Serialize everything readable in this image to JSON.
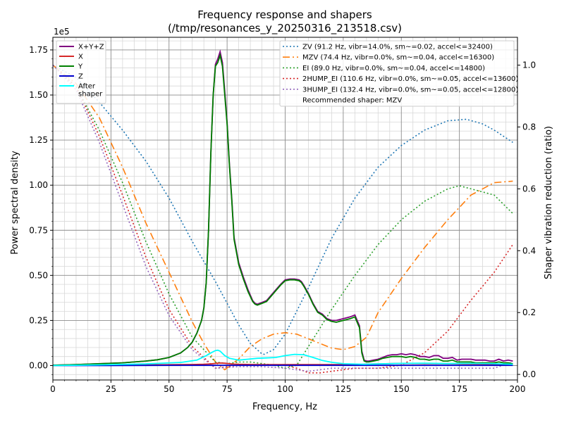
{
  "chart_data": {
    "type": "line",
    "title": "Frequency response and shapers",
    "subtitle": "(/tmp/resonances_y_20250316_213518.csv)",
    "xlabel": "Frequency, Hz",
    "ylabel": "Power spectral density",
    "y2label": "Shaper vibration reduction (ratio)",
    "y_offset_label": "1e5",
    "xlim": [
      0,
      200
    ],
    "ylim": [
      -8000,
      182000
    ],
    "y2lim": [
      -0.018,
      1.09
    ],
    "grid": true,
    "x_ticks": [
      "0",
      "25",
      "50",
      "75",
      "100",
      "125",
      "150",
      "175",
      "200"
    ],
    "y_ticks": [
      "0.00",
      "0.25",
      "0.50",
      "0.75",
      "1.00",
      "1.25",
      "1.50",
      "1.75"
    ],
    "y_tick_values": [
      0,
      25000,
      50000,
      75000,
      100000,
      125000,
      150000,
      175000
    ],
    "y2_ticks": [
      "0.0",
      "0.2",
      "0.4",
      "0.6",
      "0.8",
      "1.0"
    ],
    "y2_tick_values": [
      0,
      0.2,
      0.4,
      0.6,
      0.8,
      1.0
    ],
    "psd_legend_position": "upper-left",
    "shaper_legend_position": "upper-right",
    "recommended": "Recommended shaper: MZV",
    "psd_series": [
      {
        "name": "X+Y+Z",
        "color": "#800080",
        "x": [
          0,
          10,
          20,
          30,
          40,
          45,
          50,
          55,
          58,
          60,
          62,
          64,
          65,
          66,
          67,
          68,
          69,
          70,
          71,
          72,
          73,
          74,
          75,
          76,
          77,
          78,
          80,
          82,
          84,
          86,
          87,
          88,
          90,
          92,
          94,
          96,
          98,
          100,
          102,
          104,
          106,
          107,
          108,
          110,
          112,
          114,
          116,
          118,
          120,
          122,
          125,
          128,
          130,
          131,
          132,
          133,
          134,
          135,
          136,
          138,
          140,
          142,
          144,
          146,
          148,
          150,
          152,
          154,
          156,
          158,
          160,
          162,
          164,
          166,
          168,
          170,
          172,
          174,
          176,
          178,
          180,
          182,
          184,
          186,
          188,
          190,
          192,
          194,
          196,
          198
        ],
        "y": [
          200,
          500,
          1000,
          1500,
          2500,
          3200,
          4500,
          7000,
          10000,
          13000,
          18000,
          25000,
          32000,
          46000,
          75000,
          118000,
          150000,
          167000,
          170000,
          174000,
          168000,
          152000,
          135000,
          112000,
          93000,
          71000,
          57000,
          49000,
          42000,
          36000,
          34500,
          34000,
          35000,
          36000,
          39000,
          42000,
          45000,
          47500,
          48000,
          48000,
          47500,
          46500,
          44500,
          40000,
          34500,
          30000,
          28500,
          26000,
          25000,
          25000,
          26000,
          27000,
          28000,
          25000,
          22000,
          8000,
          3000,
          2500,
          2500,
          3000,
          3500,
          4500,
          5500,
          6000,
          6000,
          6500,
          6000,
          6500,
          6000,
          5000,
          5000,
          4500,
          5500,
          5500,
          4000,
          4000,
          4500,
          3000,
          3500,
          3500,
          3500,
          3000,
          3000,
          3000,
          2500,
          2500,
          3500,
          2500,
          3000,
          2500
        ]
      },
      {
        "name": "X",
        "color": "#d62728",
        "x": [
          0,
          20,
          40,
          60,
          65,
          68,
          70,
          72,
          74,
          76,
          78,
          80,
          85,
          90,
          100,
          110,
          120,
          130,
          132,
          135,
          140,
          150,
          160,
          170,
          180,
          190,
          198
        ],
        "y": [
          100,
          200,
          300,
          600,
          700,
          900,
          1200,
          1400,
          1300,
          1000,
          800,
          700,
          600,
          500,
          500,
          500,
          500,
          500,
          500,
          800,
          900,
          1200,
          1100,
          1000,
          900,
          700,
          600
        ]
      },
      {
        "name": "Y",
        "color": "#008000",
        "x": [
          0,
          10,
          20,
          30,
          40,
          45,
          50,
          55,
          58,
          60,
          62,
          64,
          65,
          66,
          67,
          68,
          69,
          70,
          71,
          72,
          73,
          74,
          75,
          76,
          77,
          78,
          80,
          82,
          84,
          86,
          87,
          88,
          90,
          92,
          94,
          96,
          98,
          100,
          102,
          104,
          106,
          107,
          108,
          110,
          112,
          114,
          116,
          118,
          120,
          122,
          125,
          128,
          130,
          131,
          132,
          133,
          134,
          135,
          136,
          138,
          140,
          142,
          144,
          146,
          148,
          150,
          152,
          154,
          156,
          158,
          160,
          162,
          164,
          166,
          168,
          170,
          172,
          174,
          176,
          178,
          180,
          182,
          184,
          186,
          188,
          190,
          192,
          194,
          196,
          198
        ],
        "y": [
          200,
          500,
          1000,
          1500,
          2500,
          3200,
          4500,
          7000,
          10000,
          13000,
          18000,
          25000,
          32000,
          46000,
          75000,
          118000,
          150000,
          166000,
          168000,
          172000,
          166000,
          150000,
          134000,
          111000,
          92000,
          70000,
          56000,
          48000,
          41000,
          35500,
          34000,
          33500,
          34500,
          35500,
          38500,
          41500,
          44500,
          47000,
          47500,
          47500,
          47000,
          46000,
          44000,
          39500,
          34000,
          29500,
          28000,
          25500,
          24500,
          24000,
          25000,
          26000,
          27000,
          24000,
          21000,
          7000,
          2500,
          2000,
          2000,
          2500,
          3000,
          4000,
          4500,
          5000,
          5000,
          5000,
          4500,
          5000,
          4500,
          3500,
          3500,
          3000,
          3500,
          3500,
          2500,
          2500,
          3000,
          2000,
          2000,
          2000,
          2000,
          1500,
          1500,
          1500,
          1500,
          1500,
          2000,
          1500,
          1500,
          1000
        ]
      },
      {
        "name": "Z",
        "color": "#0000cd",
        "x": [
          0,
          25,
          50,
          75,
          100,
          125,
          150,
          175,
          198
        ],
        "y": [
          0,
          0,
          100,
          100,
          100,
          100,
          100,
          100,
          100
        ]
      },
      {
        "name": "After\nshaper",
        "color": "#00ffff",
        "x": [
          0,
          20,
          40,
          55,
          62,
          66,
          68,
          70,
          71,
          72,
          74,
          76,
          78,
          80,
          84,
          88,
          92,
          96,
          100,
          104,
          108,
          112,
          116,
          120,
          125,
          130,
          134,
          140,
          150,
          160,
          170,
          180,
          190,
          198
        ],
        "y": [
          0,
          400,
          900,
          1700,
          3000,
          5500,
          7000,
          8300,
          8500,
          8000,
          5500,
          4000,
          3500,
          3000,
          3500,
          4000,
          4200,
          4500,
          5500,
          6200,
          6000,
          4500,
          2800,
          1800,
          1000,
          800,
          700,
          900,
          1200,
          1300,
          1100,
          1200,
          1000,
          700
        ]
      }
    ],
    "shaper_series": [
      {
        "name": "ZV (91.2 Hz, vibr=14.0%, sm~=0.02, accel<=32400)",
        "color": "#1f77b4",
        "dash": "2,3",
        "x": [
          0,
          10,
          20,
          30,
          40,
          50,
          60,
          70,
          80,
          85,
          90,
          91,
          95,
          100,
          110,
          120,
          130,
          140,
          150,
          160,
          170,
          178,
          185,
          190,
          198
        ],
        "y": [
          1.0,
          0.96,
          0.88,
          0.79,
          0.69,
          0.57,
          0.43,
          0.3,
          0.16,
          0.1,
          0.066,
          0.065,
          0.08,
          0.13,
          0.28,
          0.44,
          0.57,
          0.67,
          0.74,
          0.79,
          0.82,
          0.825,
          0.81,
          0.79,
          0.75
        ]
      },
      {
        "name": "MZV (74.4 Hz, vibr=0.0%, sm~=0.04, accel<=16300)",
        "color": "#ff7f0e",
        "dash": "10,4,2,4",
        "x": [
          0,
          10,
          20,
          30,
          40,
          50,
          60,
          65,
          70,
          74,
          80,
          85,
          90,
          95,
          100,
          105,
          110,
          115,
          120,
          125,
          130,
          135,
          140,
          150,
          160,
          170,
          180,
          190,
          198
        ],
        "y": [
          1.0,
          0.94,
          0.83,
          0.67,
          0.49,
          0.33,
          0.17,
          0.1,
          0.04,
          0.015,
          0.05,
          0.09,
          0.115,
          0.13,
          0.135,
          0.13,
          0.115,
          0.1,
          0.085,
          0.08,
          0.09,
          0.12,
          0.2,
          0.31,
          0.41,
          0.5,
          0.58,
          0.62,
          0.625
        ]
      },
      {
        "name": "EI (89.0 Hz, vibr=0.0%, sm~=0.04, accel<=14800)",
        "color": "#2ca02c",
        "dash": "2,3",
        "x": [
          0,
          10,
          20,
          30,
          40,
          50,
          60,
          70,
          75,
          80,
          85,
          90,
          95,
          100,
          105,
          110,
          120,
          130,
          140,
          150,
          160,
          170,
          175,
          180,
          190,
          198
        ],
        "y": [
          1.0,
          0.93,
          0.79,
          0.62,
          0.43,
          0.26,
          0.12,
          0.04,
          0.035,
          0.04,
          0.04,
          0.035,
          0.03,
          0.02,
          0.03,
          0.09,
          0.21,
          0.32,
          0.42,
          0.5,
          0.56,
          0.6,
          0.61,
          0.6,
          0.58,
          0.52
        ]
      },
      {
        "name": "2HUMP_EI (110.6 Hz, vibr=0.0%, sm~=0.05, accel<=13600)",
        "color": "#d62728",
        "dash": "2,3",
        "x": [
          0,
          10,
          20,
          30,
          40,
          50,
          60,
          70,
          75,
          80,
          90,
          100,
          105,
          110,
          115,
          120,
          130,
          140,
          150,
          160,
          170,
          180,
          190,
          198
        ],
        "y": [
          1.0,
          0.93,
          0.77,
          0.58,
          0.38,
          0.21,
          0.09,
          0.02,
          0.025,
          0.03,
          0.03,
          0.03,
          0.02,
          0.005,
          0.005,
          0.01,
          0.02,
          0.02,
          0.03,
          0.07,
          0.14,
          0.24,
          0.33,
          0.42
        ]
      },
      {
        "name": "3HUMP_EI (132.4 Hz, vibr=0.0%, sm~=0.05, accel<=12800)",
        "color": "#9467bd",
        "dash": "2,3",
        "x": [
          0,
          10,
          20,
          30,
          40,
          50,
          60,
          70,
          80,
          90,
          100,
          110,
          120,
          130,
          140,
          150,
          160,
          170,
          180,
          190,
          198
        ],
        "y": [
          1.0,
          0.92,
          0.75,
          0.55,
          0.35,
          0.19,
          0.08,
          0.02,
          0.025,
          0.025,
          0.02,
          0.01,
          0.02,
          0.02,
          0.02,
          0.02,
          0.02,
          0.02,
          0.02,
          0.02,
          0.04
        ]
      }
    ]
  }
}
